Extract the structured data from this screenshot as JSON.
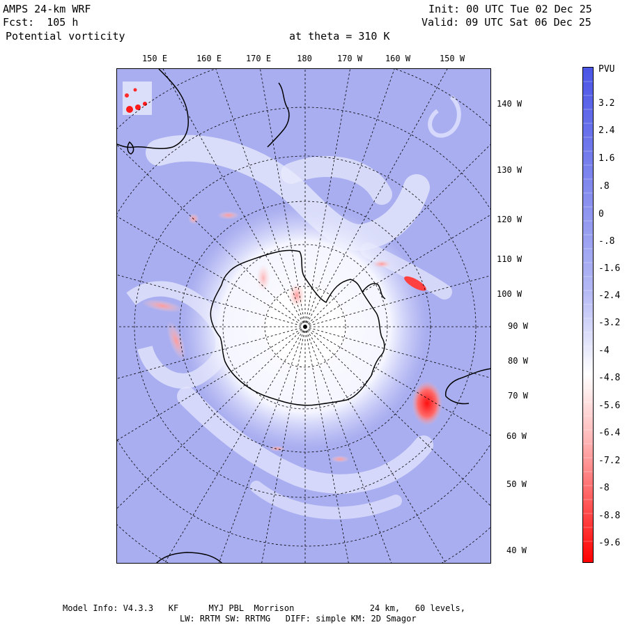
{
  "header": {
    "model": "AMPS 24-km WRF",
    "forecast": "Fcst:  105 h",
    "field": "Potential vorticity",
    "level": "at theta = 310 K",
    "init": "Init: 00 UTC Tue 02 Dec 25",
    "valid": "Valid: 09 UTC Sat 06 Dec 25"
  },
  "longitude_labels_top": [
    "150 E",
    "160 E",
    "170 E",
    "180",
    "170 W",
    "160 W",
    "150 W"
  ],
  "longitude_labels_right": [
    "140 W",
    "130 W",
    "120 W",
    "110 W",
    "100 W",
    "90 W",
    "80 W",
    "70 W",
    "60 W",
    "50 W",
    "40 W"
  ],
  "colorbar": {
    "units": "PVU",
    "labels": [
      "3.2",
      "2.4",
      "1.6",
      ".8",
      "0",
      "-.8",
      "-1.6",
      "-2.4",
      "-3.2",
      "-4",
      "-4.8",
      "-5.6",
      "-6.4",
      "-7.2",
      "-8",
      "-8.8",
      "-9.6"
    ],
    "color_top": "#4a55e6",
    "color_mid": "#ffffff",
    "color_bottom": "#ff0000"
  },
  "footer": {
    "line1": "Model Info: V4.3.3   KF      MYJ PBL  Morrison               24 km,   60 levels,",
    "line2": "LW: RRTM SW: RRTMG   DIFF: simple KM: 2D Smagor"
  },
  "colors": {
    "ocean_pv": "#a9aef0",
    "pole_white": "#ffffff",
    "high_pv_red": "#ff3030",
    "coastline": "#000000",
    "grid": "#000000"
  }
}
